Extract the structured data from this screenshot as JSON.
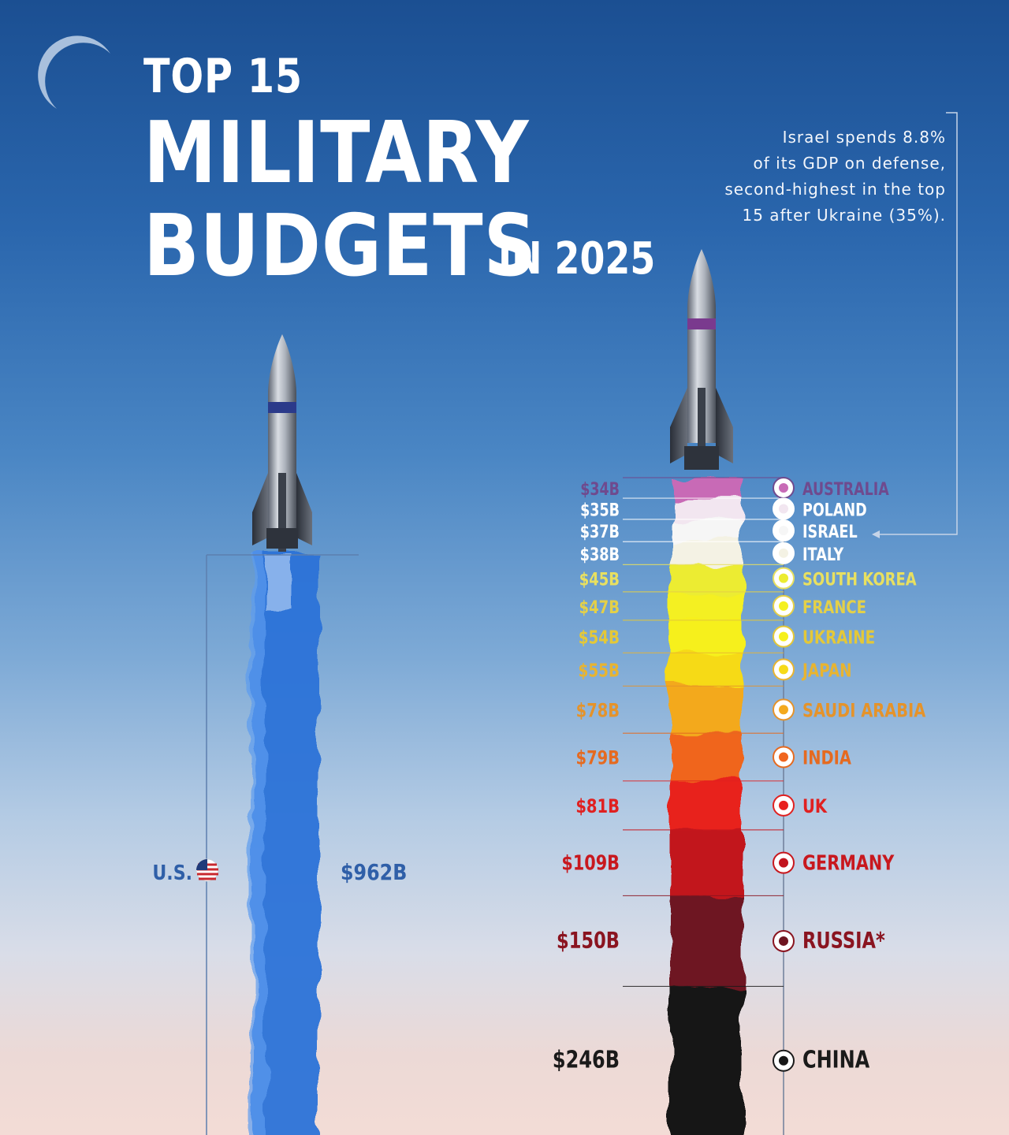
{
  "title": {
    "top": "TOP 15",
    "main_line1": "MILITARY",
    "main_line2": "BUDGETS",
    "suffix": "IN 2025"
  },
  "annotation": {
    "lines": [
      "Israel spends 8.8%",
      "of its GDP on defense,",
      "second-highest in the top",
      "15 after Ukraine (35%)."
    ]
  },
  "chart_data": {
    "type": "bar",
    "unit": "$B",
    "leader": {
      "country": "U.S.",
      "label": "$962B",
      "value": 962,
      "color": "#2c73d8"
    },
    "stack": [
      {
        "country": "AUSTRALIA",
        "label": "$34B",
        "value": 34,
        "color": "#c86bb6",
        "label_color": "#6f4a8e"
      },
      {
        "country": "POLAND",
        "label": "$35B",
        "value": 35,
        "color": "#f2e6f0",
        "label_color": "#ffffff"
      },
      {
        "country": "ISRAEL",
        "label": "$37B",
        "value": 37,
        "color": "#f6f6f6",
        "label_color": "#ffffff"
      },
      {
        "country": "ITALY",
        "label": "$38B",
        "value": 38,
        "color": "#f4f2e4",
        "label_color": "#ffffff"
      },
      {
        "country": "SOUTH KOREA",
        "label": "$45B",
        "value": 45,
        "color": "#ecec30",
        "label_color": "#e8e060"
      },
      {
        "country": "FRANCE",
        "label": "$47B",
        "value": 47,
        "color": "#f4f020",
        "label_color": "#e4d048"
      },
      {
        "country": "UKRAINE",
        "label": "$54B",
        "value": 54,
        "color": "#f6f01a",
        "label_color": "#e4c838"
      },
      {
        "country": "JAPAN",
        "label": "$55B",
        "value": 55,
        "color": "#f6da18",
        "label_color": "#e8b430"
      },
      {
        "country": "SAUDI ARABIA",
        "label": "$78B",
        "value": 78,
        "color": "#f3a91e",
        "label_color": "#e5932a"
      },
      {
        "country": "INDIA",
        "label": "$79B",
        "value": 79,
        "color": "#f0651e",
        "label_color": "#e56a20"
      },
      {
        "country": "UK",
        "label": "$81B",
        "value": 81,
        "color": "#e8201e",
        "label_color": "#e02020"
      },
      {
        "country": "GERMANY",
        "label": "$109B",
        "value": 109,
        "color": "#c2141e",
        "label_color": "#c8181e"
      },
      {
        "country": "RUSSIA",
        "label": "$150B",
        "value": 150,
        "color": "#6e1520",
        "label_color": "#8a1420"
      },
      {
        "country": "CHINA",
        "label": "$246B",
        "value": 246,
        "color": "#161616",
        "label_color": "#1a1a1a"
      }
    ],
    "russia_note": "*",
    "grid": false
  }
}
